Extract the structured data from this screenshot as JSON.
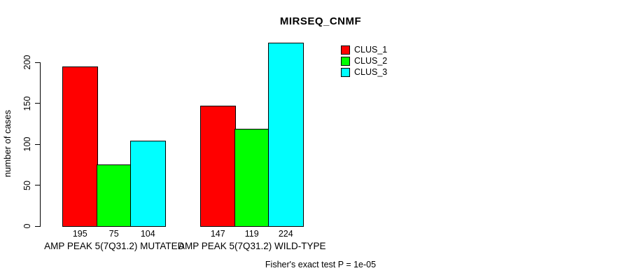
{
  "chart_data": {
    "type": "bar",
    "title": "MIRSEQ_CNMF",
    "ylabel": "number of cases",
    "xlabel": "",
    "yticks": [
      0,
      50,
      100,
      150,
      200
    ],
    "ylim": [
      0,
      225
    ],
    "grid": false,
    "legend_position": "top-right",
    "categories": [
      "AMP PEAK 5(7Q31.2) MUTATED",
      "AMP PEAK 5(7Q31.2) WILD-TYPE"
    ],
    "series": [
      {
        "name": "CLUS_1",
        "color": "#ff0000",
        "values": [
          195,
          147
        ]
      },
      {
        "name": "CLUS_2",
        "color": "#00ff00",
        "values": [
          75,
          119
        ]
      },
      {
        "name": "CLUS_3",
        "color": "#00ffff",
        "values": [
          104,
          224
        ]
      }
    ],
    "annotation": "Fisher's exact test P = 1e-05"
  },
  "colors": {
    "axis": "#000000",
    "background": "#ffffff",
    "text": "#000000"
  }
}
